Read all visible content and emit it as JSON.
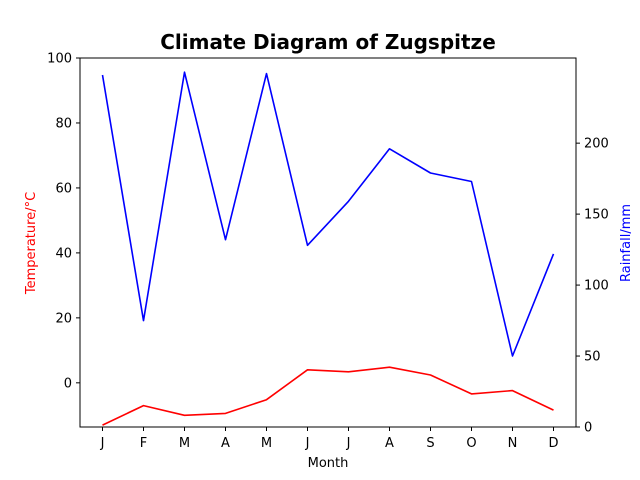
{
  "chart_data": {
    "type": "line",
    "title": "Climate Diagram of Zugspitze",
    "xlabel": "Month",
    "ylabel_left": "Temperature/°C",
    "ylabel_right": "Rainfall/mm",
    "categories": [
      "J",
      "F",
      "M",
      "A",
      "M",
      "J",
      "J",
      "A",
      "S",
      "O",
      "N",
      "D"
    ],
    "ylim_left": [
      -13.6,
      100
    ],
    "ylim_right": [
      0,
      260
    ],
    "yticks_left": [
      0,
      20,
      40,
      60,
      80,
      100
    ],
    "yticks_right": [
      0,
      50,
      100,
      150,
      200
    ],
    "grid": false,
    "series": [
      {
        "axis": "left",
        "color": "#ff0000",
        "values": [
          -13,
          -7,
          -10,
          -9.4,
          -5.2,
          4,
          3.4,
          4.8,
          2.4,
          -3.4,
          -2.4,
          -8.4
        ]
      },
      {
        "axis": "right",
        "color": "#0000ff",
        "values": [
          248,
          75,
          250,
          132,
          249,
          128,
          159,
          196,
          179,
          173,
          50,
          122
        ]
      }
    ]
  }
}
